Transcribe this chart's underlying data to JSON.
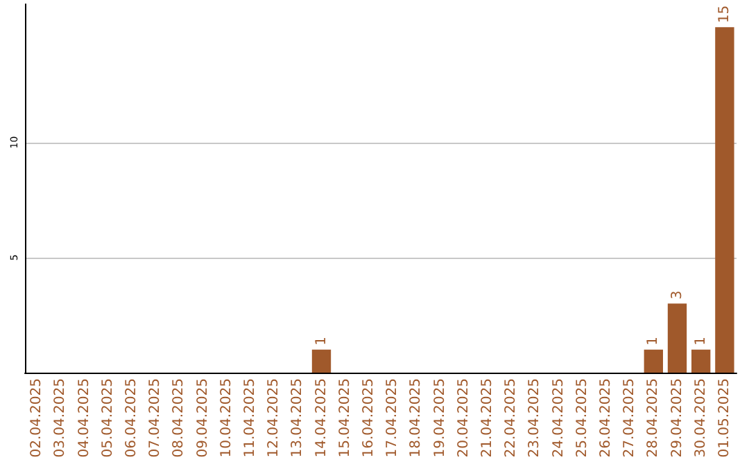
{
  "chart_data": {
    "type": "bar",
    "categories": [
      "02.04.2025",
      "03.04.2025",
      "04.04.2025",
      "05.04.2025",
      "06.04.2025",
      "07.04.2025",
      "08.04.2025",
      "09.04.2025",
      "10.04.2025",
      "11.04.2025",
      "12.04.2025",
      "13.04.2025",
      "14.04.2025",
      "15.04.2025",
      "16.04.2025",
      "17.04.2025",
      "18.04.2025",
      "19.04.2025",
      "20.04.2025",
      "21.04.2025",
      "22.04.2025",
      "23.04.2025",
      "24.04.2025",
      "25.04.2025",
      "26.04.2025",
      "27.04.2025",
      "28.04.2025",
      "29.04.2025",
      "30.04.2025",
      "01.05.2025"
    ],
    "values": [
      0,
      0,
      0,
      0,
      0,
      0,
      0,
      0,
      0,
      0,
      0,
      0,
      1,
      0,
      0,
      0,
      0,
      0,
      0,
      0,
      0,
      0,
      0,
      0,
      0,
      0,
      1,
      3,
      1,
      15
    ],
    "value_labels": [
      null,
      null,
      null,
      null,
      null,
      null,
      null,
      null,
      null,
      null,
      null,
      null,
      "1",
      null,
      null,
      null,
      null,
      null,
      null,
      null,
      null,
      null,
      null,
      null,
      null,
      null,
      "1",
      "3",
      "1",
      "15"
    ],
    "color": "#a0592b",
    "ylim": [
      0,
      16
    ],
    "yticks": [
      5,
      10
    ],
    "grid": "y"
  }
}
